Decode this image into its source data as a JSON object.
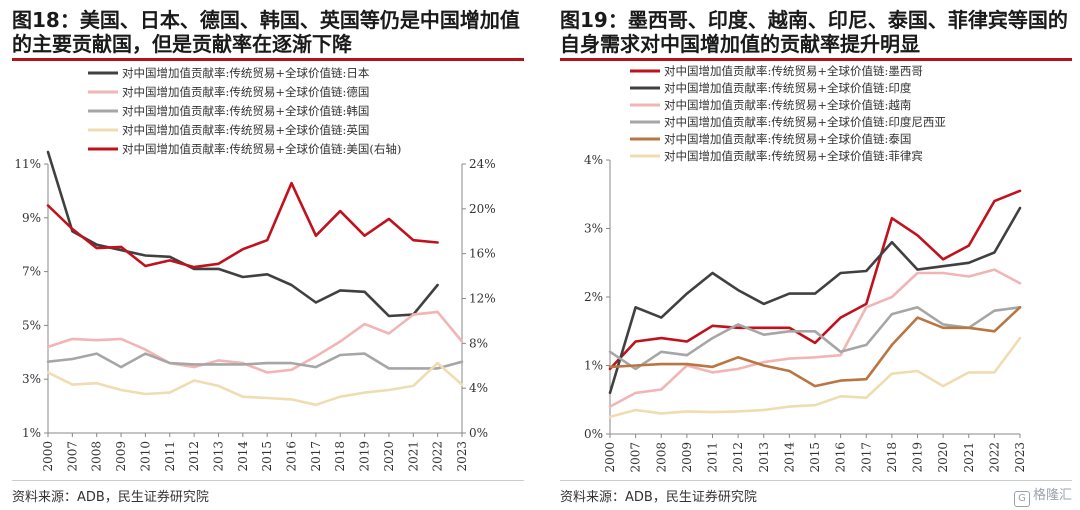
{
  "watermark": {
    "text": "格隆汇"
  },
  "charts": [
    {
      "fig_title": "图18：美国、日本、德国、韩国、英国等仍是中国增加值的主要贡献国，但是贡献率在逐渐下降",
      "source": "资料来源：ADB，民生证券研究院"
    },
    {
      "fig_title": "图19：墨西哥、印度、越南、印尼、泰国、菲律宾等国的自身需求对中国增加值的贡献率提升明显",
      "source": "资料来源：ADB，民生证券研究院"
    }
  ],
  "chart_data": [
    {
      "type": "line",
      "x": [
        "2000",
        "2007",
        "2008",
        "2009",
        "2010",
        "2011",
        "2012",
        "2013",
        "2014",
        "2015",
        "2016",
        "2017",
        "2018",
        "2019",
        "2020",
        "2021",
        "2022",
        "2023"
      ],
      "y_left": {
        "min": 1,
        "max": 11,
        "ticks": [
          "1%",
          "3%",
          "5%",
          "7%",
          "9%",
          "11%"
        ]
      },
      "y_right": {
        "min": 0,
        "max": 24,
        "ticks": [
          "0%",
          "4%",
          "8%",
          "12%",
          "16%",
          "20%",
          "24%"
        ]
      },
      "legend_position": "top",
      "series": [
        {
          "name": "对中国增加值贡献率:传统贸易+全球价值链:日本",
          "color": "#404040",
          "axis": "left",
          "values": [
            11.8,
            8.5,
            8.0,
            7.8,
            7.6,
            7.55,
            7.1,
            7.1,
            6.8,
            6.9,
            6.5,
            5.85,
            6.3,
            6.25,
            5.35,
            5.4,
            6.5,
            null
          ]
        },
        {
          "name": "对中国增加值贡献率:传统贸易+全球价值链:德国",
          "color": "#f2b5b5",
          "axis": "left",
          "values": [
            4.2,
            4.5,
            4.45,
            4.5,
            4.1,
            3.6,
            3.45,
            3.7,
            3.6,
            3.25,
            3.35,
            3.85,
            4.4,
            5.05,
            4.7,
            5.4,
            5.5,
            4.4
          ]
        },
        {
          "name": "对中国增加值贡献率:传统贸易+全球价值链:韩国",
          "color": "#a6a6a6",
          "axis": "left",
          "values": [
            3.65,
            3.75,
            3.95,
            3.45,
            3.95,
            3.6,
            3.55,
            3.55,
            3.55,
            3.6,
            3.6,
            3.45,
            3.9,
            3.95,
            3.4,
            3.4,
            3.4,
            3.65
          ]
        },
        {
          "name": "对中国增加值贡献率:传统贸易+全球价值链:英国",
          "color": "#efdcb0",
          "axis": "left",
          "values": [
            3.25,
            2.8,
            2.85,
            2.6,
            2.45,
            2.5,
            2.95,
            2.75,
            2.35,
            2.3,
            2.25,
            2.05,
            2.35,
            2.5,
            2.6,
            2.75,
            3.6,
            2.8
          ]
        },
        {
          "name": "对中国增加值贡献率:传统贸易+全球价值链:美国(右轴)",
          "color": "#c0111d",
          "axis": "right",
          "values": [
            20.3,
            18.2,
            16.5,
            16.6,
            14.9,
            15.4,
            14.8,
            15.1,
            16.4,
            17.2,
            22.3,
            17.6,
            19.8,
            17.6,
            19.1,
            17.2,
            17.0,
            null
          ]
        }
      ]
    },
    {
      "type": "line",
      "x": [
        "2000",
        "2007",
        "2008",
        "2009",
        "2011",
        "2012",
        "2013",
        "2014",
        "2015",
        "2016",
        "2017",
        "2018",
        "2019",
        "2020",
        "2021",
        "2022",
        "2023"
      ],
      "y_left": {
        "min": 0,
        "max": 4,
        "ticks": [
          "0%",
          "1%",
          "2%",
          "3%",
          "4%"
        ]
      },
      "legend_position": "top",
      "series": [
        {
          "name": "对中国增加值贡献率:传统贸易+全球价值链:墨西哥",
          "color": "#c0111d",
          "values": [
            0.95,
            1.35,
            1.4,
            1.35,
            1.58,
            1.55,
            1.55,
            1.55,
            1.33,
            1.7,
            1.9,
            3.15,
            2.9,
            2.55,
            2.75,
            3.4,
            3.55
          ]
        },
        {
          "name": "对中国增加值贡献率:传统贸易+全球价值链:印度",
          "color": "#404040",
          "values": [
            0.6,
            1.85,
            1.7,
            2.05,
            2.35,
            2.1,
            1.9,
            2.05,
            2.05,
            2.35,
            2.38,
            2.8,
            2.4,
            2.45,
            2.5,
            2.65,
            3.3
          ]
        },
        {
          "name": "对中国增加值贡献率:传统贸易+全球价值链:越南",
          "color": "#f2b5b5",
          "values": [
            0.4,
            0.6,
            0.65,
            1.0,
            0.9,
            0.95,
            1.05,
            1.1,
            1.12,
            1.15,
            1.85,
            2.0,
            2.35,
            2.35,
            2.3,
            2.4,
            2.2
          ]
        },
        {
          "name": "对中国增加值贡献率:传统贸易+全球价值链:印度尼西亚",
          "color": "#a6a6a6",
          "values": [
            1.2,
            0.95,
            1.2,
            1.15,
            1.4,
            1.6,
            1.45,
            1.5,
            1.5,
            1.2,
            1.3,
            1.75,
            1.85,
            1.6,
            1.55,
            1.8,
            1.85
          ]
        },
        {
          "name": "对中国增加值贡献率:传统贸易+全球价值链:泰国",
          "color": "#b97542",
          "values": [
            0.98,
            1.0,
            1.02,
            1.02,
            0.98,
            1.12,
            1.0,
            0.92,
            0.7,
            0.78,
            0.8,
            1.3,
            1.7,
            1.55,
            1.55,
            1.5,
            1.85
          ]
        },
        {
          "name": "对中国增加值贡献率:传统贸易+全球价值链:菲律宾",
          "color": "#efdcb0",
          "values": [
            0.25,
            0.35,
            0.3,
            0.33,
            0.32,
            0.33,
            0.35,
            0.4,
            0.42,
            0.55,
            0.53,
            0.88,
            0.92,
            0.7,
            0.9,
            0.9,
            1.4
          ]
        }
      ]
    }
  ]
}
